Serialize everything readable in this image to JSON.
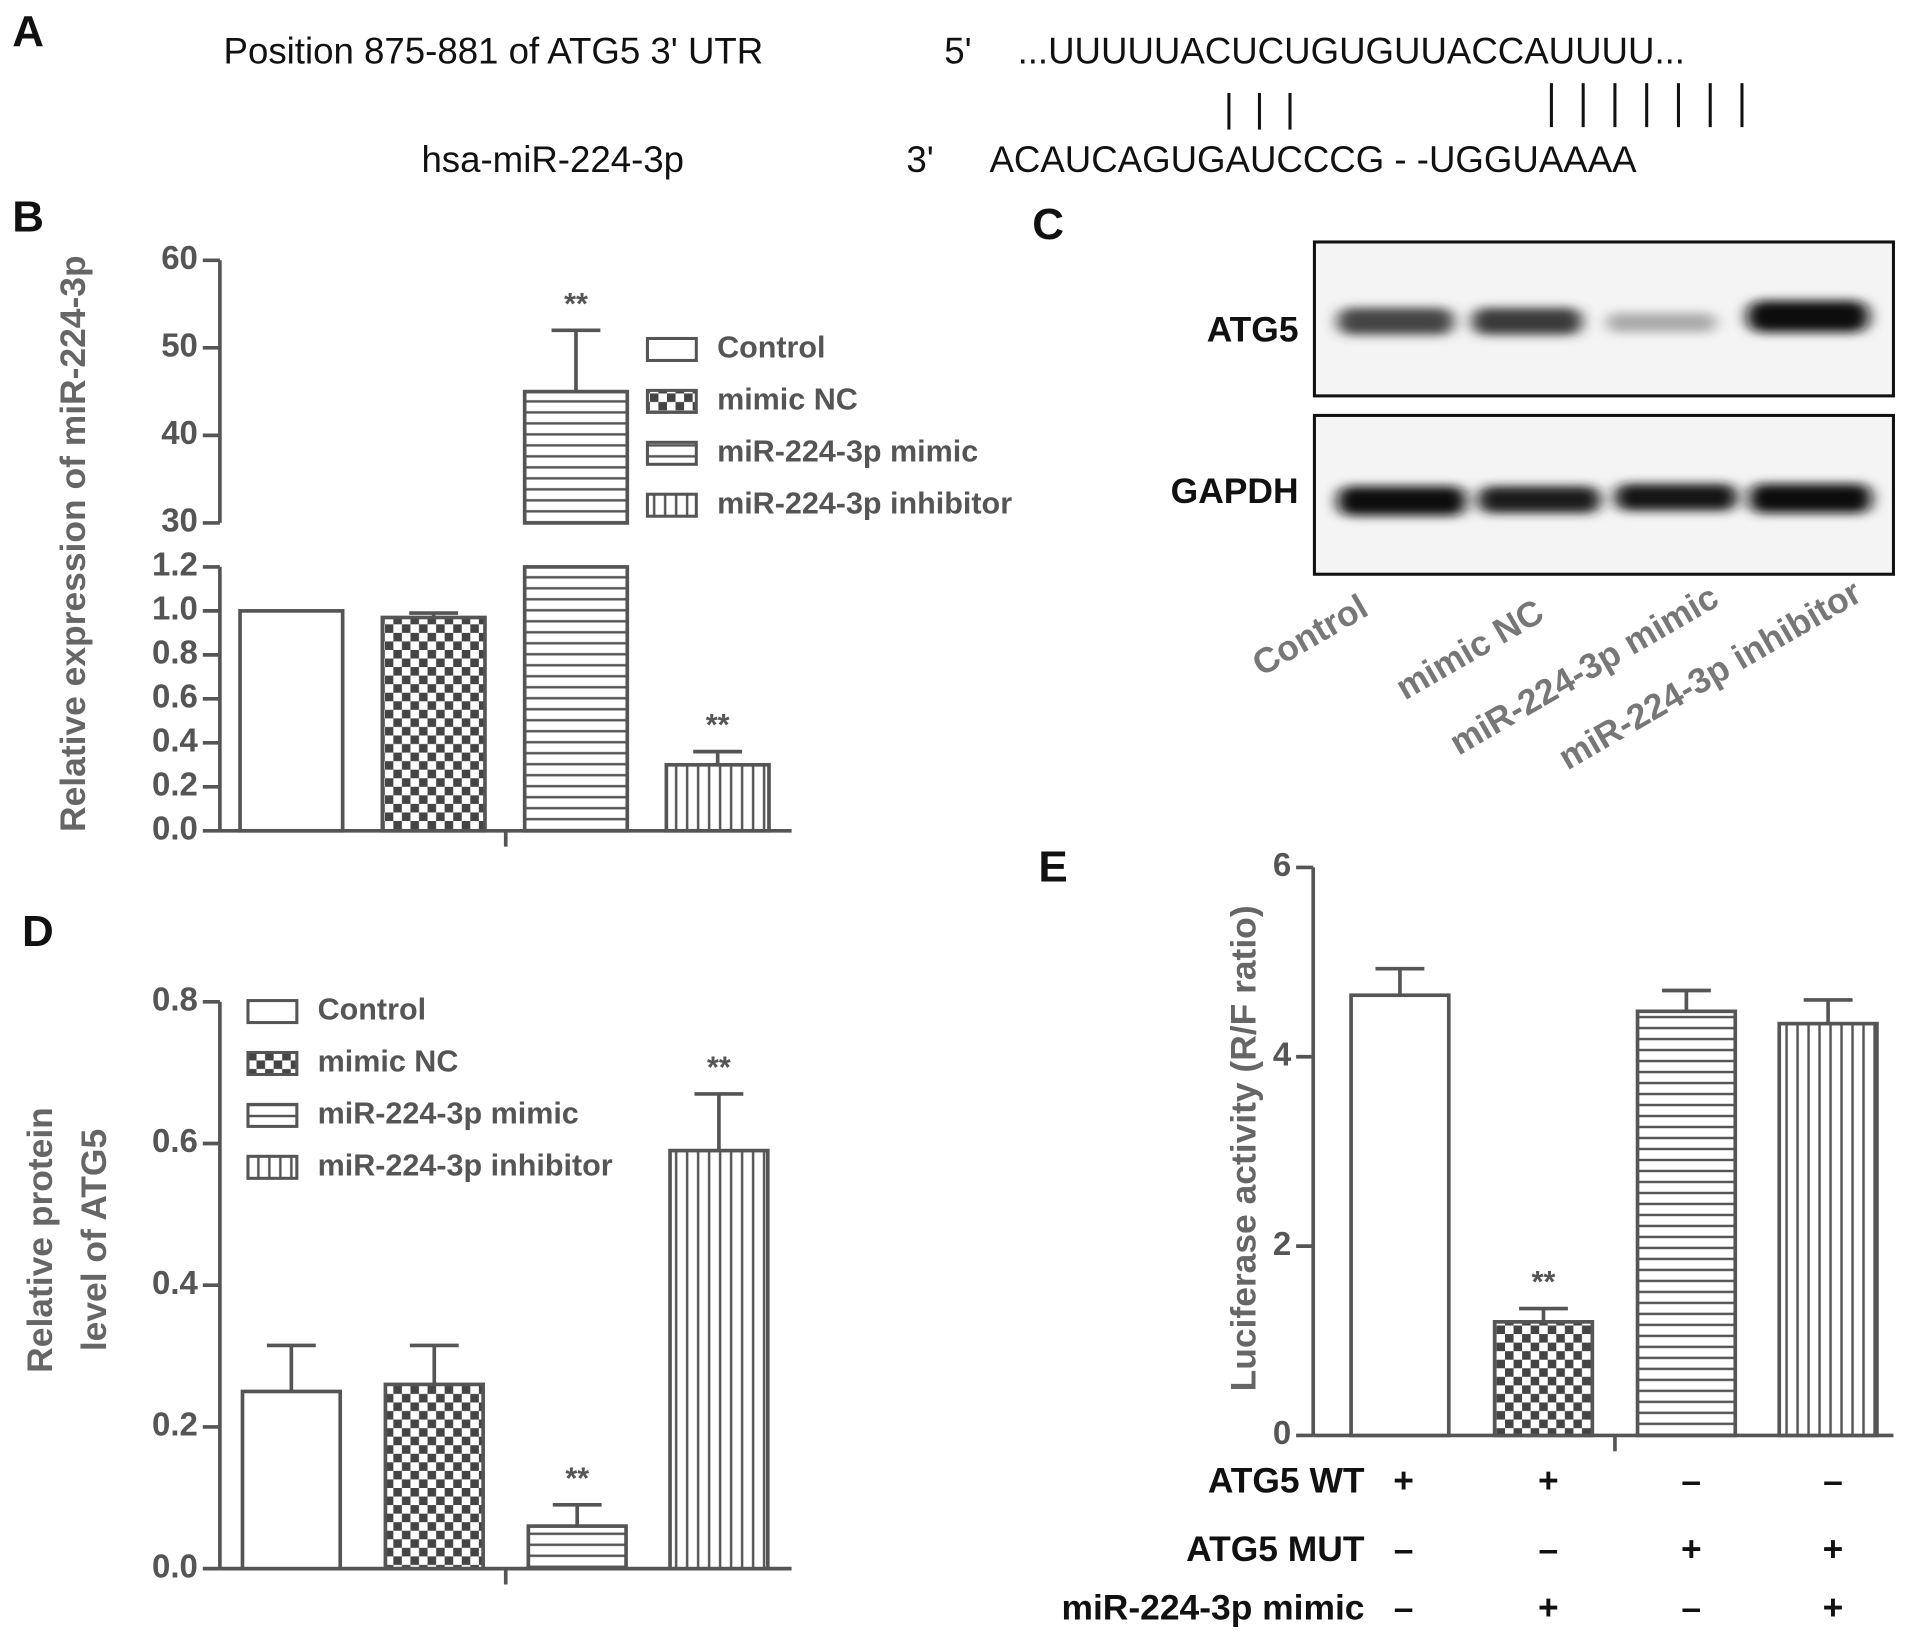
{
  "panel_labels": [
    "A",
    "B",
    "C",
    "D",
    "E"
  ],
  "panel_a": {
    "utr_label": "Position 875-881 of ATG5 3' UTR",
    "utr_end": "5'",
    "utr_sequence": "...UUUUUACUCUGUGUUACCAUUUU...",
    "mirna_label": "hsa-miR-224-3p",
    "mirna_end": "3'",
    "mirna_sequence": "ACAUCAGUGAUCCCG - -UGGUAAAA"
  },
  "panel_c": {
    "blots": [
      "ATG5",
      "GAPDH"
    ],
    "lanes": [
      "Control",
      "mimic NC",
      "miR-224-3p mimic",
      "miR-224-3p inhibitor"
    ]
  },
  "chart_data": [
    {
      "type": "bar",
      "ylabel": "Relative expression of miR-224-3p",
      "categories": [
        "Control",
        "mimic NC",
        "miR-224-3p mimic",
        "miR-224-3p inhibitor"
      ],
      "values": [
        1.0,
        0.97,
        45,
        0.3
      ],
      "errors": [
        null,
        0.02,
        7,
        0.06
      ],
      "annotations": [
        null,
        null,
        "**",
        "**"
      ],
      "patterns": [
        "open",
        "checker",
        "horizontal",
        "vertical"
      ],
      "color": "#555555",
      "ylim": [
        0,
        60
      ],
      "y_break": [
        1.2,
        30
      ],
      "yticks": [
        {
          "value": 0,
          "label": "0.0"
        },
        0.2,
        0.4,
        0.6,
        0.8,
        {
          "value": 1,
          "label": "1.0"
        },
        1.2,
        30,
        40,
        50,
        60
      ],
      "legend": "top-right"
    },
    {
      "type": "bar",
      "ylabel": [
        "Relative protein",
        "level of ATG5"
      ],
      "categories": [
        "Control",
        "mimic NC",
        "miR-224-3p mimic",
        "miR-224-3p inhibitor"
      ],
      "values": [
        0.25,
        0.26,
        0.06,
        0.59
      ],
      "errors": [
        0.065,
        0.055,
        0.03,
        0.08
      ],
      "annotations": [
        null,
        null,
        "**",
        "**"
      ],
      "patterns": [
        "open",
        "checker",
        "horizontal",
        "vertical"
      ],
      "color": "#555555",
      "ylim": [
        0,
        0.8
      ],
      "yticks": [
        {
          "value": 0,
          "label": "0.0"
        },
        0.2,
        0.4,
        0.6,
        0.8
      ],
      "legend": "top-left"
    },
    {
      "type": "bar",
      "ylabel": "Luciferase activity (R/F ratio)",
      "categories": [
        null,
        null,
        null,
        null
      ],
      "values": [
        4.65,
        1.2,
        4.48,
        4.35
      ],
      "errors": [
        0.28,
        0.14,
        0.22,
        0.25
      ],
      "annotations": [
        null,
        "**",
        null,
        null
      ],
      "patterns": [
        "open",
        "checker",
        "horizontal",
        "vertical"
      ],
      "color": "#555555",
      "ylim": [
        0,
        6
      ],
      "yticks": [
        0,
        2,
        4,
        6
      ],
      "conditions": [
        {
          "name": "ATG5 WT",
          "values": [
            "+",
            "+",
            "–",
            "–"
          ]
        },
        {
          "name": "ATG5 MUT",
          "values": [
            "–",
            "–",
            "+",
            "+"
          ]
        },
        {
          "name": "miR-224-3p mimic",
          "values": [
            "–",
            "+",
            "–",
            "+"
          ]
        }
      ]
    }
  ]
}
